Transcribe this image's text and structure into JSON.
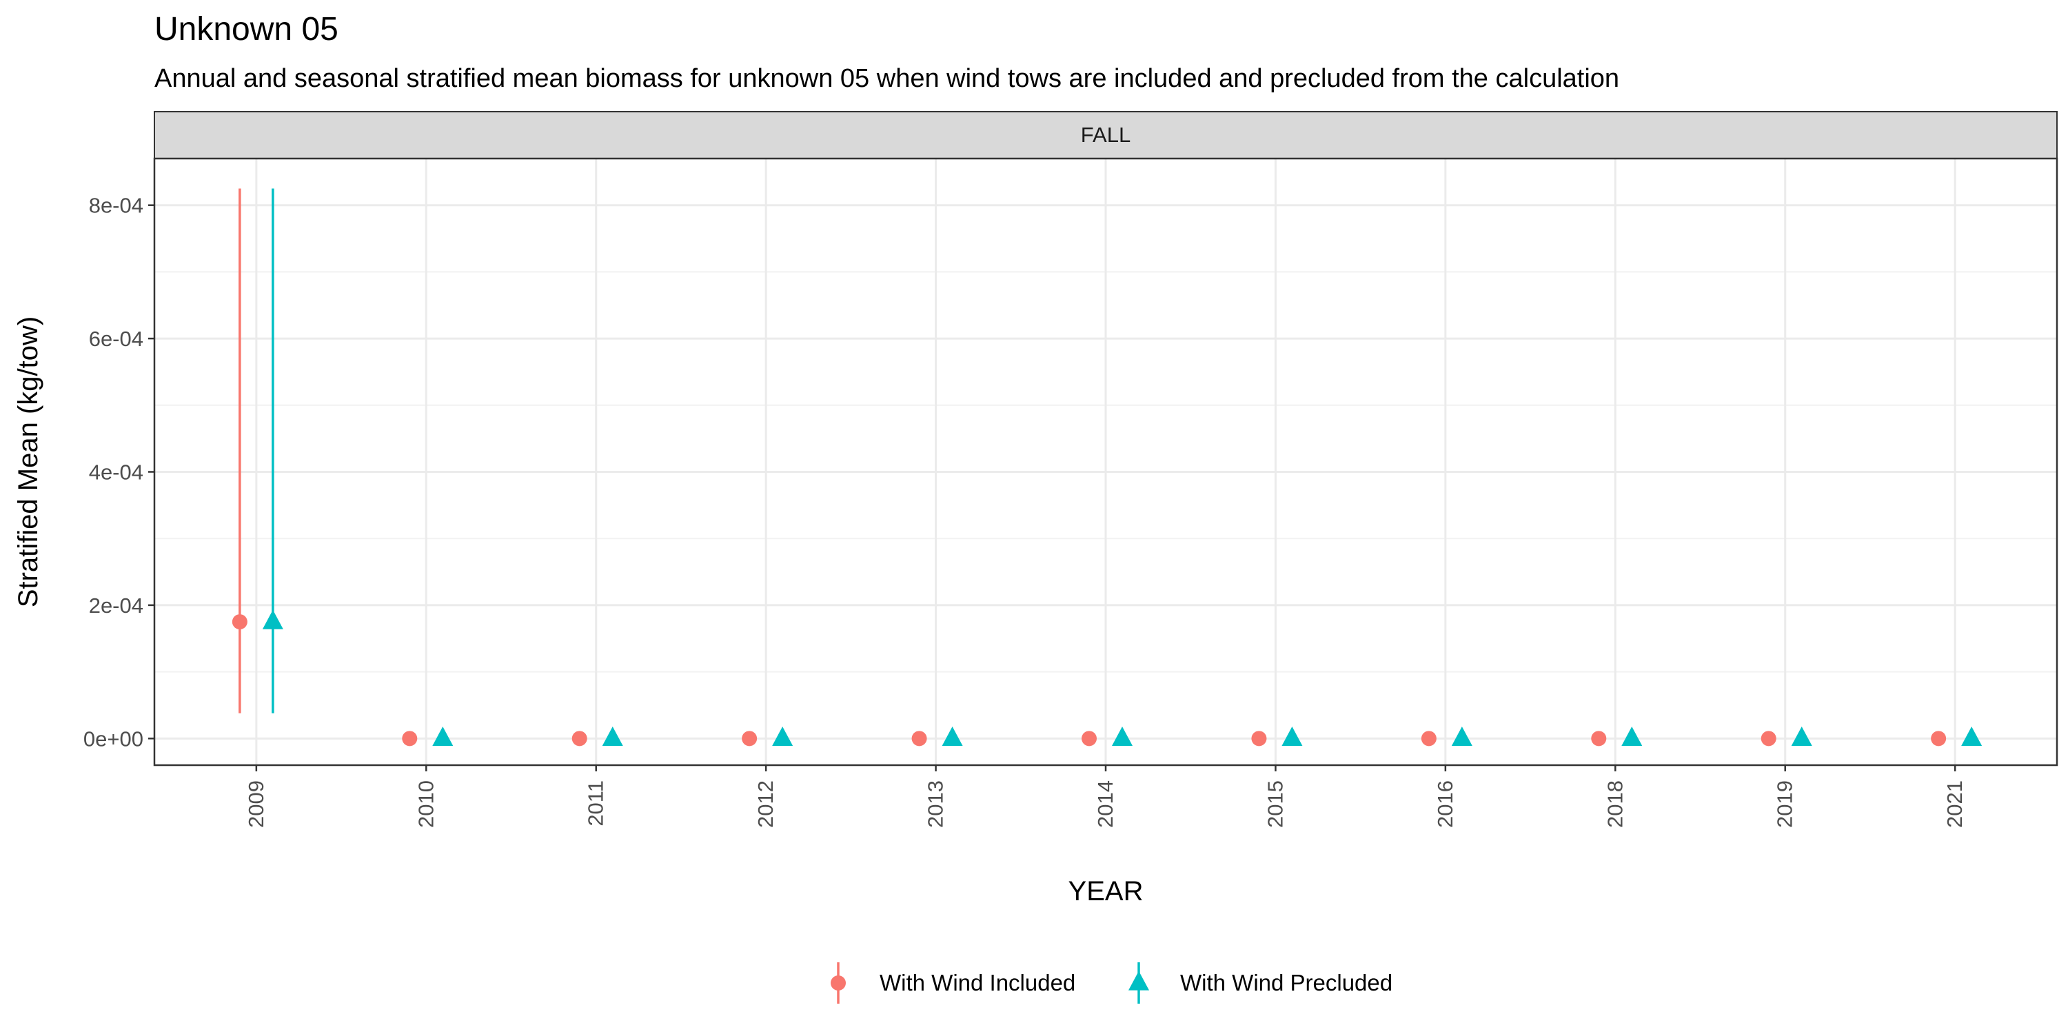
{
  "chart_data": {
    "type": "scatter",
    "title": "Unknown 05",
    "subtitle": "Annual and seasonal stratified mean biomass for unknown 05 when wind tows are included and precluded from the calculation",
    "facet": "FALL",
    "xlabel": "YEAR",
    "ylabel": "Stratified Mean (kg/tow)",
    "categories": [
      "2009",
      "2010",
      "2011",
      "2012",
      "2013",
      "2014",
      "2015",
      "2016",
      "2018",
      "2019",
      "2021"
    ],
    "ylim": [
      -4e-05,
      0.00087
    ],
    "y_ticks": [
      0,
      0.0002,
      0.0004,
      0.0006,
      0.0008
    ],
    "y_tick_labels": [
      "0e+00",
      "2e-04",
      "4e-04",
      "6e-04",
      "8e-04"
    ],
    "grid": true,
    "legend_position": "bottom",
    "series": [
      {
        "name": "With Wind Included",
        "color": "#F8766D",
        "marker": "circle",
        "values": [
          0.000175,
          0,
          0,
          0,
          0,
          0,
          0,
          0,
          0,
          0,
          0
        ],
        "lower": [
          3.8e-05,
          null,
          null,
          null,
          null,
          null,
          null,
          null,
          null,
          null,
          null
        ],
        "upper": [
          0.000825,
          null,
          null,
          null,
          null,
          null,
          null,
          null,
          null,
          null,
          null
        ]
      },
      {
        "name": "With Wind Precluded",
        "color": "#00BFC4",
        "marker": "triangle",
        "values": [
          0.000175,
          0,
          0,
          0,
          0,
          0,
          0,
          0,
          0,
          0,
          0
        ],
        "lower": [
          3.8e-05,
          null,
          null,
          null,
          null,
          null,
          null,
          null,
          null,
          null,
          null
        ],
        "upper": [
          0.000825,
          null,
          null,
          null,
          null,
          null,
          null,
          null,
          null,
          null,
          null
        ]
      }
    ]
  }
}
